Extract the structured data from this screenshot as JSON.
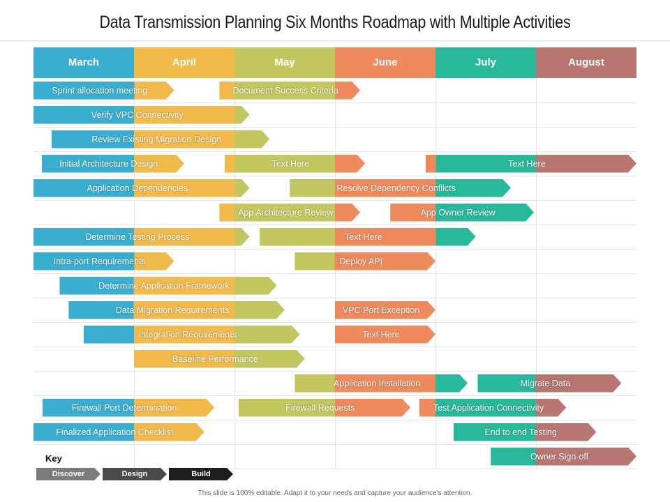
{
  "title": "Data Transmission Planning Six Months Roadmap with Multiple Activities",
  "months": [
    {
      "label": "March",
      "color": "#3aaed0"
    },
    {
      "label": "April",
      "color": "#f2b94b"
    },
    {
      "label": "May",
      "color": "#c2c760"
    },
    {
      "label": "June",
      "color": "#ef8a5c"
    },
    {
      "label": "July",
      "color": "#27b99a"
    },
    {
      "label": "August",
      "color": "#b87670"
    }
  ],
  "bar_colors": {
    "march": "#3aaed0",
    "april": "#f2b94b",
    "may": "#c2c760",
    "june": "#ef8a5c",
    "july": "#27b99a",
    "august": "#b87670"
  },
  "rows": [
    [
      {
        "label": "Sprint allocation meeting",
        "start_month": 0.0,
        "end_month": 1.4
      },
      {
        "label": "Document Success Criteria",
        "start_month": 1.85,
        "end_month": 3.25
      }
    ],
    [
      {
        "label": "Verify VPC Connectivity",
        "start_month": 0.0,
        "end_month": 2.15
      }
    ],
    [
      {
        "label": "Review  Existing Migration Design",
        "start_month": 0.18,
        "end_month": 2.35
      }
    ],
    [
      {
        "label": "Initial Architecture Design",
        "start_month": 0.08,
        "end_month": 1.5
      },
      {
        "label": "Text Here",
        "start_month": 1.9,
        "end_month": 3.3
      },
      {
        "label": "Text Here",
        "start_month": 3.9,
        "end_month": 6.0
      }
    ],
    [
      {
        "label": "Application Dependencies",
        "start_month": 0.0,
        "end_month": 2.15
      },
      {
        "label": "Resolve  Dependency Conflicts",
        "start_month": 2.55,
        "end_month": 4.75
      }
    ],
    [
      {
        "label": "App Architecture Review",
        "start_month": 1.85,
        "end_month": 3.25
      },
      {
        "label": "App Owner Review",
        "start_month": 3.55,
        "end_month": 4.98
      }
    ],
    [
      {
        "label": "Determine Testing Process",
        "start_month": 0.0,
        "end_month": 2.15
      },
      {
        "label": "Text Here",
        "start_month": 2.25,
        "end_month": 4.4
      }
    ],
    [
      {
        "label": "Intra-port  Requirements",
        "start_month": 0.0,
        "end_month": 1.4
      },
      {
        "label": "Deploy API",
        "start_month": 2.6,
        "end_month": 4.0
      }
    ],
    [
      {
        "label": "Determine Application Framework",
        "start_month": 0.26,
        "end_month": 2.42
      }
    ],
    [
      {
        "label": "Data Migration Requirements",
        "start_month": 0.35,
        "end_month": 2.5
      },
      {
        "label": "VPC Port Exception",
        "start_month": 3.0,
        "end_month": 4.0
      }
    ],
    [
      {
        "label": "Integration Requirements",
        "start_month": 0.5,
        "end_month": 2.65
      },
      {
        "label": "Text Here",
        "start_month": 3.0,
        "end_month": 4.0
      }
    ],
    [
      {
        "label": "Baseline Performance",
        "start_month": 1.0,
        "end_month": 2.7
      }
    ],
    [
      {
        "label": "Application Installation",
        "start_month": 2.6,
        "end_month": 4.32
      },
      {
        "label": "Migrate Data",
        "start_month": 4.42,
        "end_month": 5.85
      }
    ],
    [
      {
        "label": "Firewall Port Determination",
        "start_month": 0.09,
        "end_month": 1.8
      },
      {
        "label": "Firewall Requests",
        "start_month": 2.04,
        "end_month": 3.75
      },
      {
        "label": "Test Application Connectivity",
        "start_month": 3.84,
        "end_month": 5.3
      }
    ],
    [
      {
        "label": "Finalized Application Checklist",
        "start_month": 0.0,
        "end_month": 1.7
      },
      {
        "label": "End to end Testing",
        "start_month": 4.18,
        "end_month": 5.6
      }
    ],
    [
      {
        "label": "Owner Sign-off",
        "start_month": 4.55,
        "end_month": 6.0
      }
    ]
  ],
  "key": {
    "title": "Key",
    "items": [
      {
        "label": "Discover",
        "color": "#7b7b7b"
      },
      {
        "label": "Design",
        "color": "#4a4a4a"
      },
      {
        "label": "Build",
        "color": "#1e1e1e"
      }
    ]
  },
  "footer": "This slide is 100% editable. Adapt it to your needs and capture your audience's attention."
}
